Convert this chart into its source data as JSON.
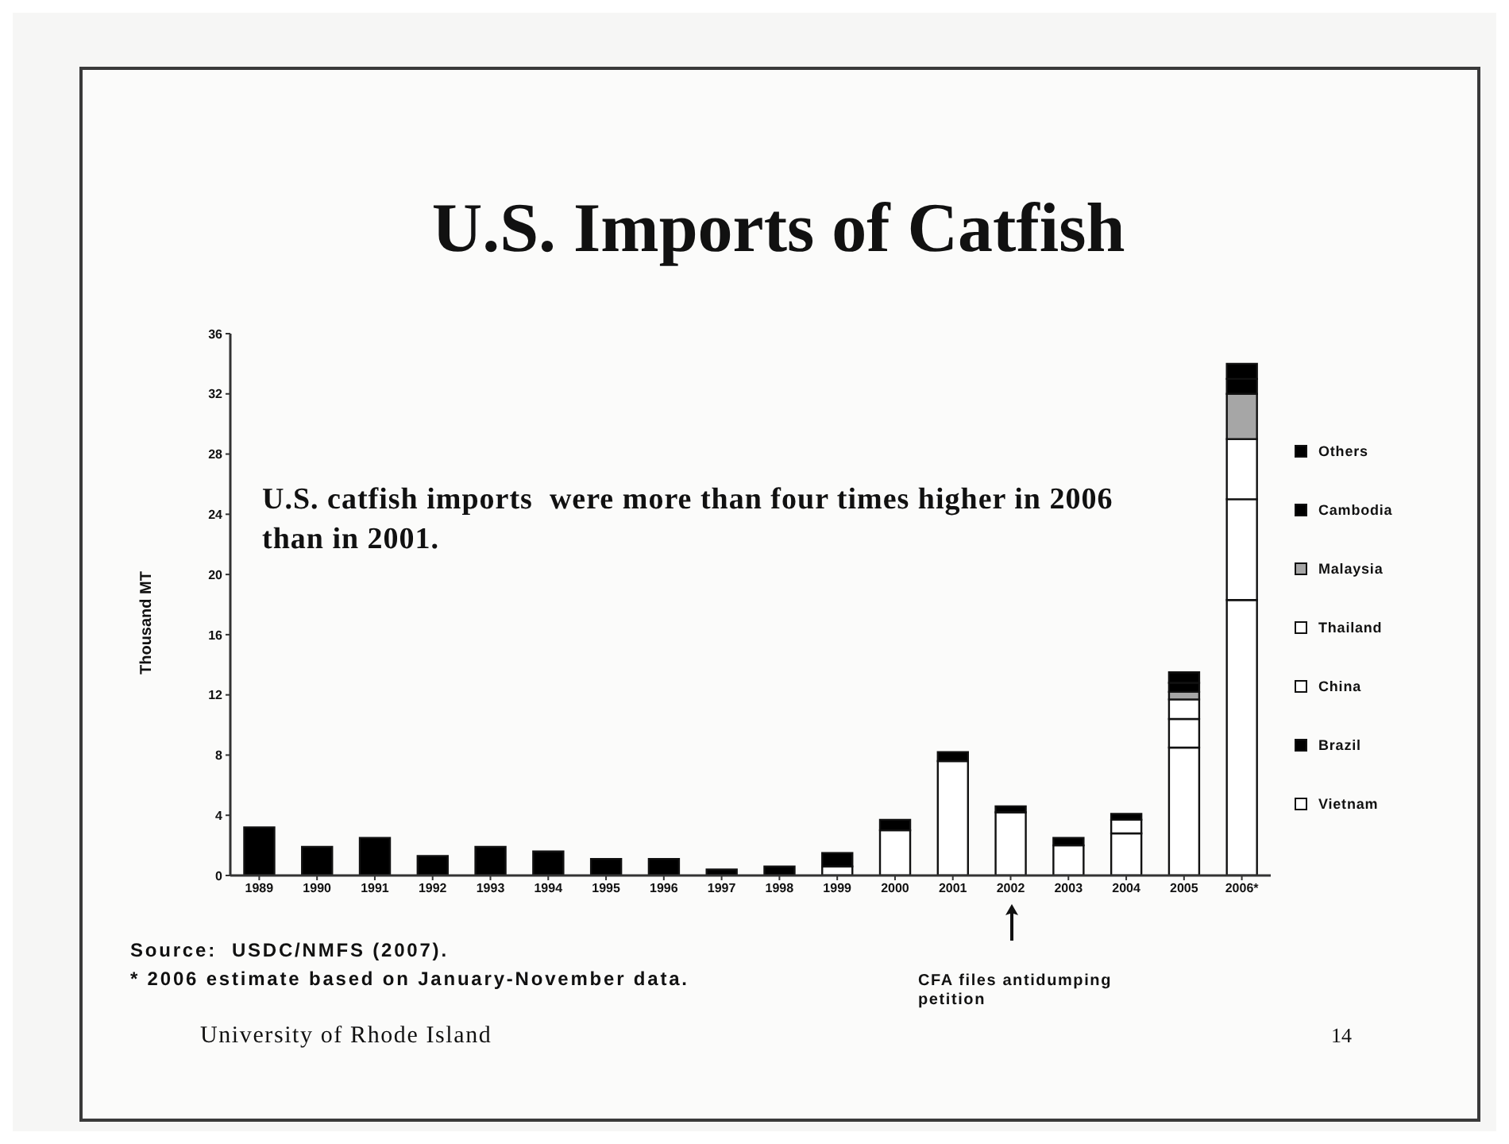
{
  "chart_data": {
    "type": "bar",
    "title": "U.S. Imports of Catfish",
    "ylabel": "Thousand MT",
    "categories": [
      "1989",
      "1990",
      "1991",
      "1992",
      "1993",
      "1994",
      "1995",
      "1996",
      "1997",
      "1998",
      "1999",
      "2000",
      "2001",
      "2002",
      "2003",
      "2004",
      "2005",
      "2006*"
    ],
    "series": [
      {
        "name": "Vietnam",
        "color": "#ffffff",
        "values": [
          0,
          0,
          0,
          0,
          0,
          0,
          0,
          0,
          0,
          0,
          0.6,
          3.0,
          7.6,
          4.2,
          2.0,
          2.8,
          8.5,
          18.3
        ]
      },
      {
        "name": "Brazil",
        "color": "#000000",
        "values": [
          3.2,
          1.9,
          2.5,
          1.3,
          1.9,
          1.6,
          1.1,
          1.1,
          0.4,
          0.6,
          0,
          0,
          0,
          0,
          0,
          0,
          0,
          0
        ]
      },
      {
        "name": "China",
        "color": "#ffffff",
        "values": [
          0,
          0,
          0,
          0,
          0,
          0,
          0,
          0,
          0,
          0,
          0,
          0,
          0,
          0,
          0,
          0.9,
          1.9,
          6.7
        ]
      },
      {
        "name": "Thailand",
        "color": "#ffffff",
        "values": [
          0,
          0,
          0,
          0,
          0,
          0,
          0,
          0,
          0,
          0,
          0,
          0,
          0,
          0,
          0,
          0,
          1.3,
          4.0
        ]
      },
      {
        "name": "Malaysia",
        "color": "#a6a6a6",
        "values": [
          0,
          0,
          0,
          0,
          0,
          0,
          0,
          0,
          0,
          0,
          0,
          0,
          0,
          0,
          0,
          0,
          0.5,
          3.0
        ]
      },
      {
        "name": "Cambodia",
        "color": "#000000",
        "values": [
          0,
          0,
          0,
          0,
          0,
          0,
          0,
          0,
          0,
          0,
          0,
          0,
          0,
          0,
          0,
          0,
          0.6,
          1.0
        ]
      },
      {
        "name": "Others",
        "color": "#000000",
        "values": [
          0,
          0,
          0,
          0,
          0,
          0,
          0,
          0,
          0,
          0,
          0.9,
          0.7,
          0.6,
          0.4,
          0.5,
          0.4,
          0.7,
          1.0
        ]
      }
    ],
    "stacked": true,
    "ylim": [
      0,
      36
    ],
    "yticks": [
      0,
      4,
      8,
      12,
      16,
      20,
      24,
      28,
      32,
      36
    ],
    "legend": "right",
    "annotations": [
      "U.S. catfish imports  were more than four times higher in 2006 than in 2001.",
      "CFA files antidumping petition",
      "Source:  USDC/NMFS (2007).",
      "* 2006 estimate based on January-November data.",
      "University of Rhode Island",
      "14"
    ]
  }
}
